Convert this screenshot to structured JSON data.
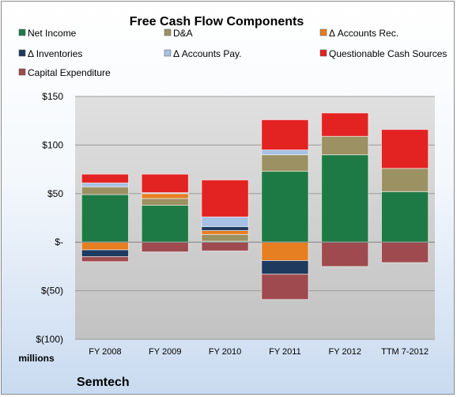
{
  "chart_data": {
    "type": "bar",
    "stacked": true,
    "title": "Free Cash Flow Components",
    "categories": [
      "FY 2008",
      "FY 2009",
      "FY 2010",
      "FY 2011",
      "FY 2012",
      "TTM 7-2012"
    ],
    "ylim": [
      -100,
      150
    ],
    "yticks": [
      150,
      100,
      50,
      0,
      -50,
      -100
    ],
    "ytick_labels": [
      "$150",
      "$100",
      "$50",
      "$-",
      "$(50)",
      "$(100)"
    ],
    "unit_label": "millions",
    "company": "Semtech",
    "grid": true,
    "legend_position": "top",
    "series": [
      {
        "name": "Net Income",
        "color": "#1e7a45",
        "values": [
          49,
          38,
          1,
          73,
          90,
          52
        ]
      },
      {
        "name": "D&A",
        "color": "#9c9163",
        "values": [
          8,
          7,
          7,
          17,
          19,
          24
        ]
      },
      {
        "name": "Δ Accounts Rec.",
        "color": "#e67e22",
        "values": [
          -8,
          5,
          4,
          -19,
          0,
          0
        ]
      },
      {
        "name": "Δ Inventories",
        "color": "#1f3a5f",
        "values": [
          -7,
          0,
          4,
          -14,
          0,
          0
        ]
      },
      {
        "name": "Δ Accounts Pay.",
        "color": "#a6c1e3",
        "values": [
          4,
          1,
          10,
          5,
          0,
          0
        ]
      },
      {
        "name": "Questionable Cash Sources",
        "color": "#e32222",
        "values": [
          9,
          19,
          38,
          31,
          24,
          40
        ]
      },
      {
        "name": "Capital Expenditure",
        "color": "#9e4a4f",
        "values": [
          -5,
          -10,
          -9,
          -26,
          -25,
          -21
        ]
      }
    ]
  }
}
